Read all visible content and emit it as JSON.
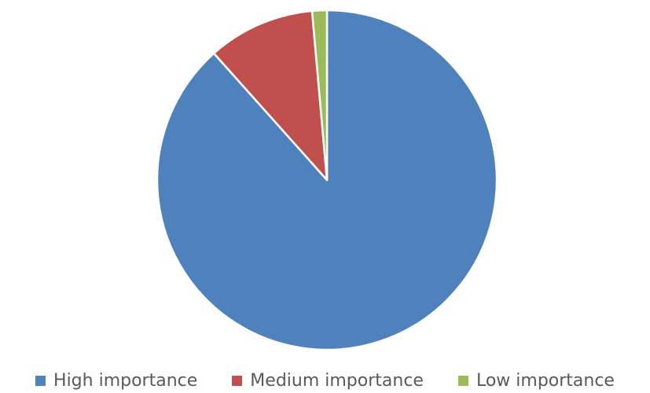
{
  "chart_data": {
    "type": "pie",
    "title": "",
    "categories": [
      "High importance",
      "Medium importance",
      "Low importance"
    ],
    "values": [
      88.4,
      10.2,
      1.4
    ],
    "colors": [
      "#4F81BD",
      "#C0504D",
      "#9BBB59"
    ],
    "start_angle_deg": 0,
    "direction": "clockwise",
    "legend_position": "bottom"
  }
}
